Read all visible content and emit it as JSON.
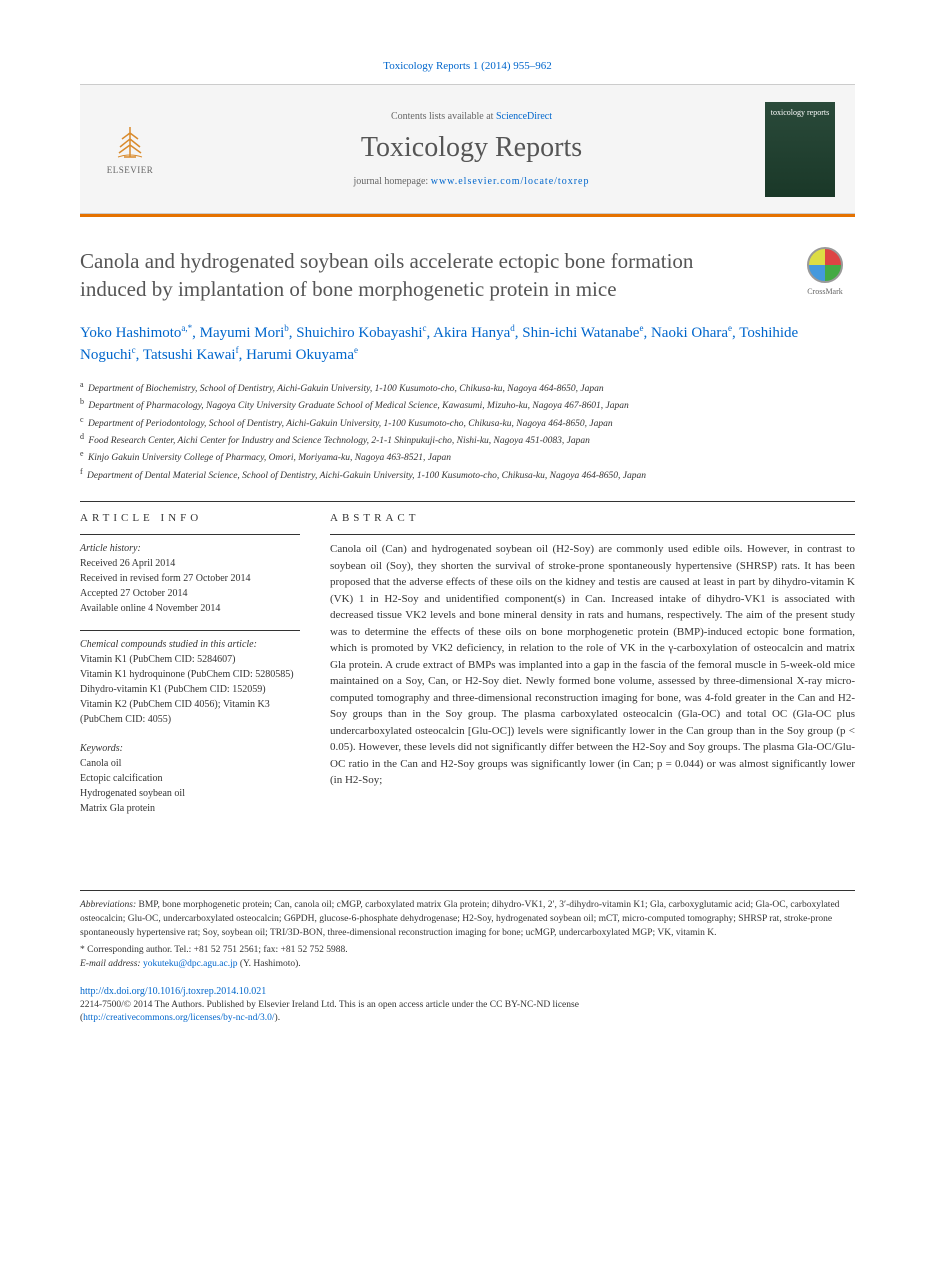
{
  "citation": "Toxicology Reports 1 (2014) 955–962",
  "header": {
    "contents_prefix": "Contents lists available at ",
    "contents_link": "ScienceDirect",
    "journal_name": "Toxicology Reports",
    "homepage_prefix": "journal homepage: ",
    "homepage_url": "www.elsevier.com/locate/toxrep",
    "publisher": "ELSEVIER",
    "cover_label": "toxicology reports"
  },
  "crossmark_label": "CrossMark",
  "title": "Canola and hydrogenated soybean oils accelerate ectopic bone formation induced by implantation of bone morphogenetic protein in mice",
  "authors_html": "Yoko Hashimoto<sup>a,*</sup>, Mayumi Mori<sup>b</sup>, Shuichiro Kobayashi<sup>c</sup>, Akira Hanya<sup>d</sup>, Shin-ichi Watanabe<sup>e</sup>, Naoki Ohara<sup>e</sup>, Toshihide Noguchi<sup>c</sup>, Tatsushi Kawai<sup>f</sup>, Harumi Okuyama<sup>e</sup>",
  "affiliations": [
    {
      "sup": "a",
      "text": "Department of Biochemistry, School of Dentistry, Aichi-Gakuin University, 1-100 Kusumoto-cho, Chikusa-ku, Nagoya 464-8650, Japan"
    },
    {
      "sup": "b",
      "text": "Department of Pharmacology, Nagoya City University Graduate School of Medical Science, Kawasumi, Mizuho-ku, Nagoya 467-8601, Japan"
    },
    {
      "sup": "c",
      "text": "Department of Periodontology, School of Dentistry, Aichi-Gakuin University, 1-100 Kusumoto-cho, Chikusa-ku, Nagoya 464-8650, Japan"
    },
    {
      "sup": "d",
      "text": "Food Research Center, Aichi Center for Industry and Science Technology, 2-1-1 Shinpukuji-cho, Nishi-ku, Nagoya 451-0083, Japan"
    },
    {
      "sup": "e",
      "text": "Kinjo Gakuin University College of Pharmacy, Omori, Moriyama-ku, Nagoya 463-8521, Japan"
    },
    {
      "sup": "f",
      "text": "Department of Dental Material Science, School of Dentistry, Aichi-Gakuin University, 1-100 Kusumoto-cho, Chikusa-ku, Nagoya 464-8650, Japan"
    }
  ],
  "info": {
    "heading": "ARTICLE INFO",
    "history_label": "Article history:",
    "history": [
      "Received 26 April 2014",
      "Received in revised form 27 October 2014",
      "Accepted 27 October 2014",
      "Available online 4 November 2014"
    ],
    "compounds_label": "Chemical compounds studied in this article:",
    "compounds": [
      "Vitamin K1 (PubChem CID: 5284607)",
      "Vitamin K1 hydroquinone (PubChem CID: 5280585)",
      "Dihydro-vitamin K1 (PubChem CID: 152059)",
      "Vitamin K2 (PubChem CID 4056); Vitamin K3 (PubChem CID: 4055)"
    ],
    "keywords_label": "Keywords:",
    "keywords": [
      "Canola oil",
      "Ectopic calcification",
      "Hydrogenated soybean oil",
      "Matrix Gla protein"
    ]
  },
  "abstract": {
    "heading": "ABSTRACT",
    "text": "Canola oil (Can) and hydrogenated soybean oil (H2-Soy) are commonly used edible oils. However, in contrast to soybean oil (Soy), they shorten the survival of stroke-prone spontaneously hypertensive (SHRSP) rats. It has been proposed that the adverse effects of these oils on the kidney and testis are caused at least in part by dihydro-vitamin K (VK) 1 in H2-Soy and unidentified component(s) in Can. Increased intake of dihydro-VK1 is associated with decreased tissue VK2 levels and bone mineral density in rats and humans, respectively. The aim of the present study was to determine the effects of these oils on bone morphogenetic protein (BMP)-induced ectopic bone formation, which is promoted by VK2 deficiency, in relation to the role of VK in the γ-carboxylation of osteocalcin and matrix Gla protein. A crude extract of BMPs was implanted into a gap in the fascia of the femoral muscle in 5-week-old mice maintained on a Soy, Can, or H2-Soy diet. Newly formed bone volume, assessed by three-dimensional X-ray micro-computed tomography and three-dimensional reconstruction imaging for bone, was 4-fold greater in the Can and H2-Soy groups than in the Soy group. The plasma carboxylated osteocalcin (Gla-OC) and total OC (Gla-OC plus undercarboxylated osteocalcin [Glu-OC]) levels were significantly lower in the Can group than in the Soy group (p < 0.05). However, these levels did not significantly differ between the H2-Soy and Soy groups. The plasma Gla-OC/Glu-OC ratio in the Can and H2-Soy groups was significantly lower (in Can; p = 0.044) or was almost significantly lower (in H2-Soy;"
  },
  "footnotes": {
    "abbrev_label": "Abbreviations:",
    "abbrev_text": " BMP, bone morphogenetic protein; Can, canola oil; cMGP, carboxylated matrix Gla protein; dihydro-VK1, 2′, 3′-dihydro-vitamin K1; Gla, carboxyglutamic acid; Gla-OC, carboxylated osteocalcin; Glu-OC, undercarboxylated osteocalcin; G6PDH, glucose-6-phosphate dehydrogenase; H2-Soy, hydrogenated soybean oil; mCT, micro-computed tomography; SHRSP rat, stroke-prone spontaneously hypertensive rat; Soy, soybean oil; TRI/3D-BON, three-dimensional reconstruction imaging for bone; ucMGP, undercarboxylated MGP; VK, vitamin K.",
    "corr_label": "* Corresponding author. ",
    "corr_text": "Tel.: +81 52 751 2561; fax: +81 52 752 5988.",
    "email_label": "E-mail address: ",
    "email": "yokuteku@dpc.agu.ac.jp",
    "email_suffix": " (Y. Hashimoto)."
  },
  "doi": "http://dx.doi.org/10.1016/j.toxrep.2014.10.021",
  "license": {
    "line1": "2214-7500/© 2014 The Authors. Published by Elsevier Ireland Ltd. This is an open access article under the CC BY-NC-ND license",
    "url": "http://creativecommons.org/licenses/by-nc-nd/3.0/",
    "open_paren": "(",
    "close_paren": ")."
  },
  "colors": {
    "link": "#0066cc",
    "accent": "#e57200",
    "text": "#333333",
    "headgray": "#555555"
  }
}
